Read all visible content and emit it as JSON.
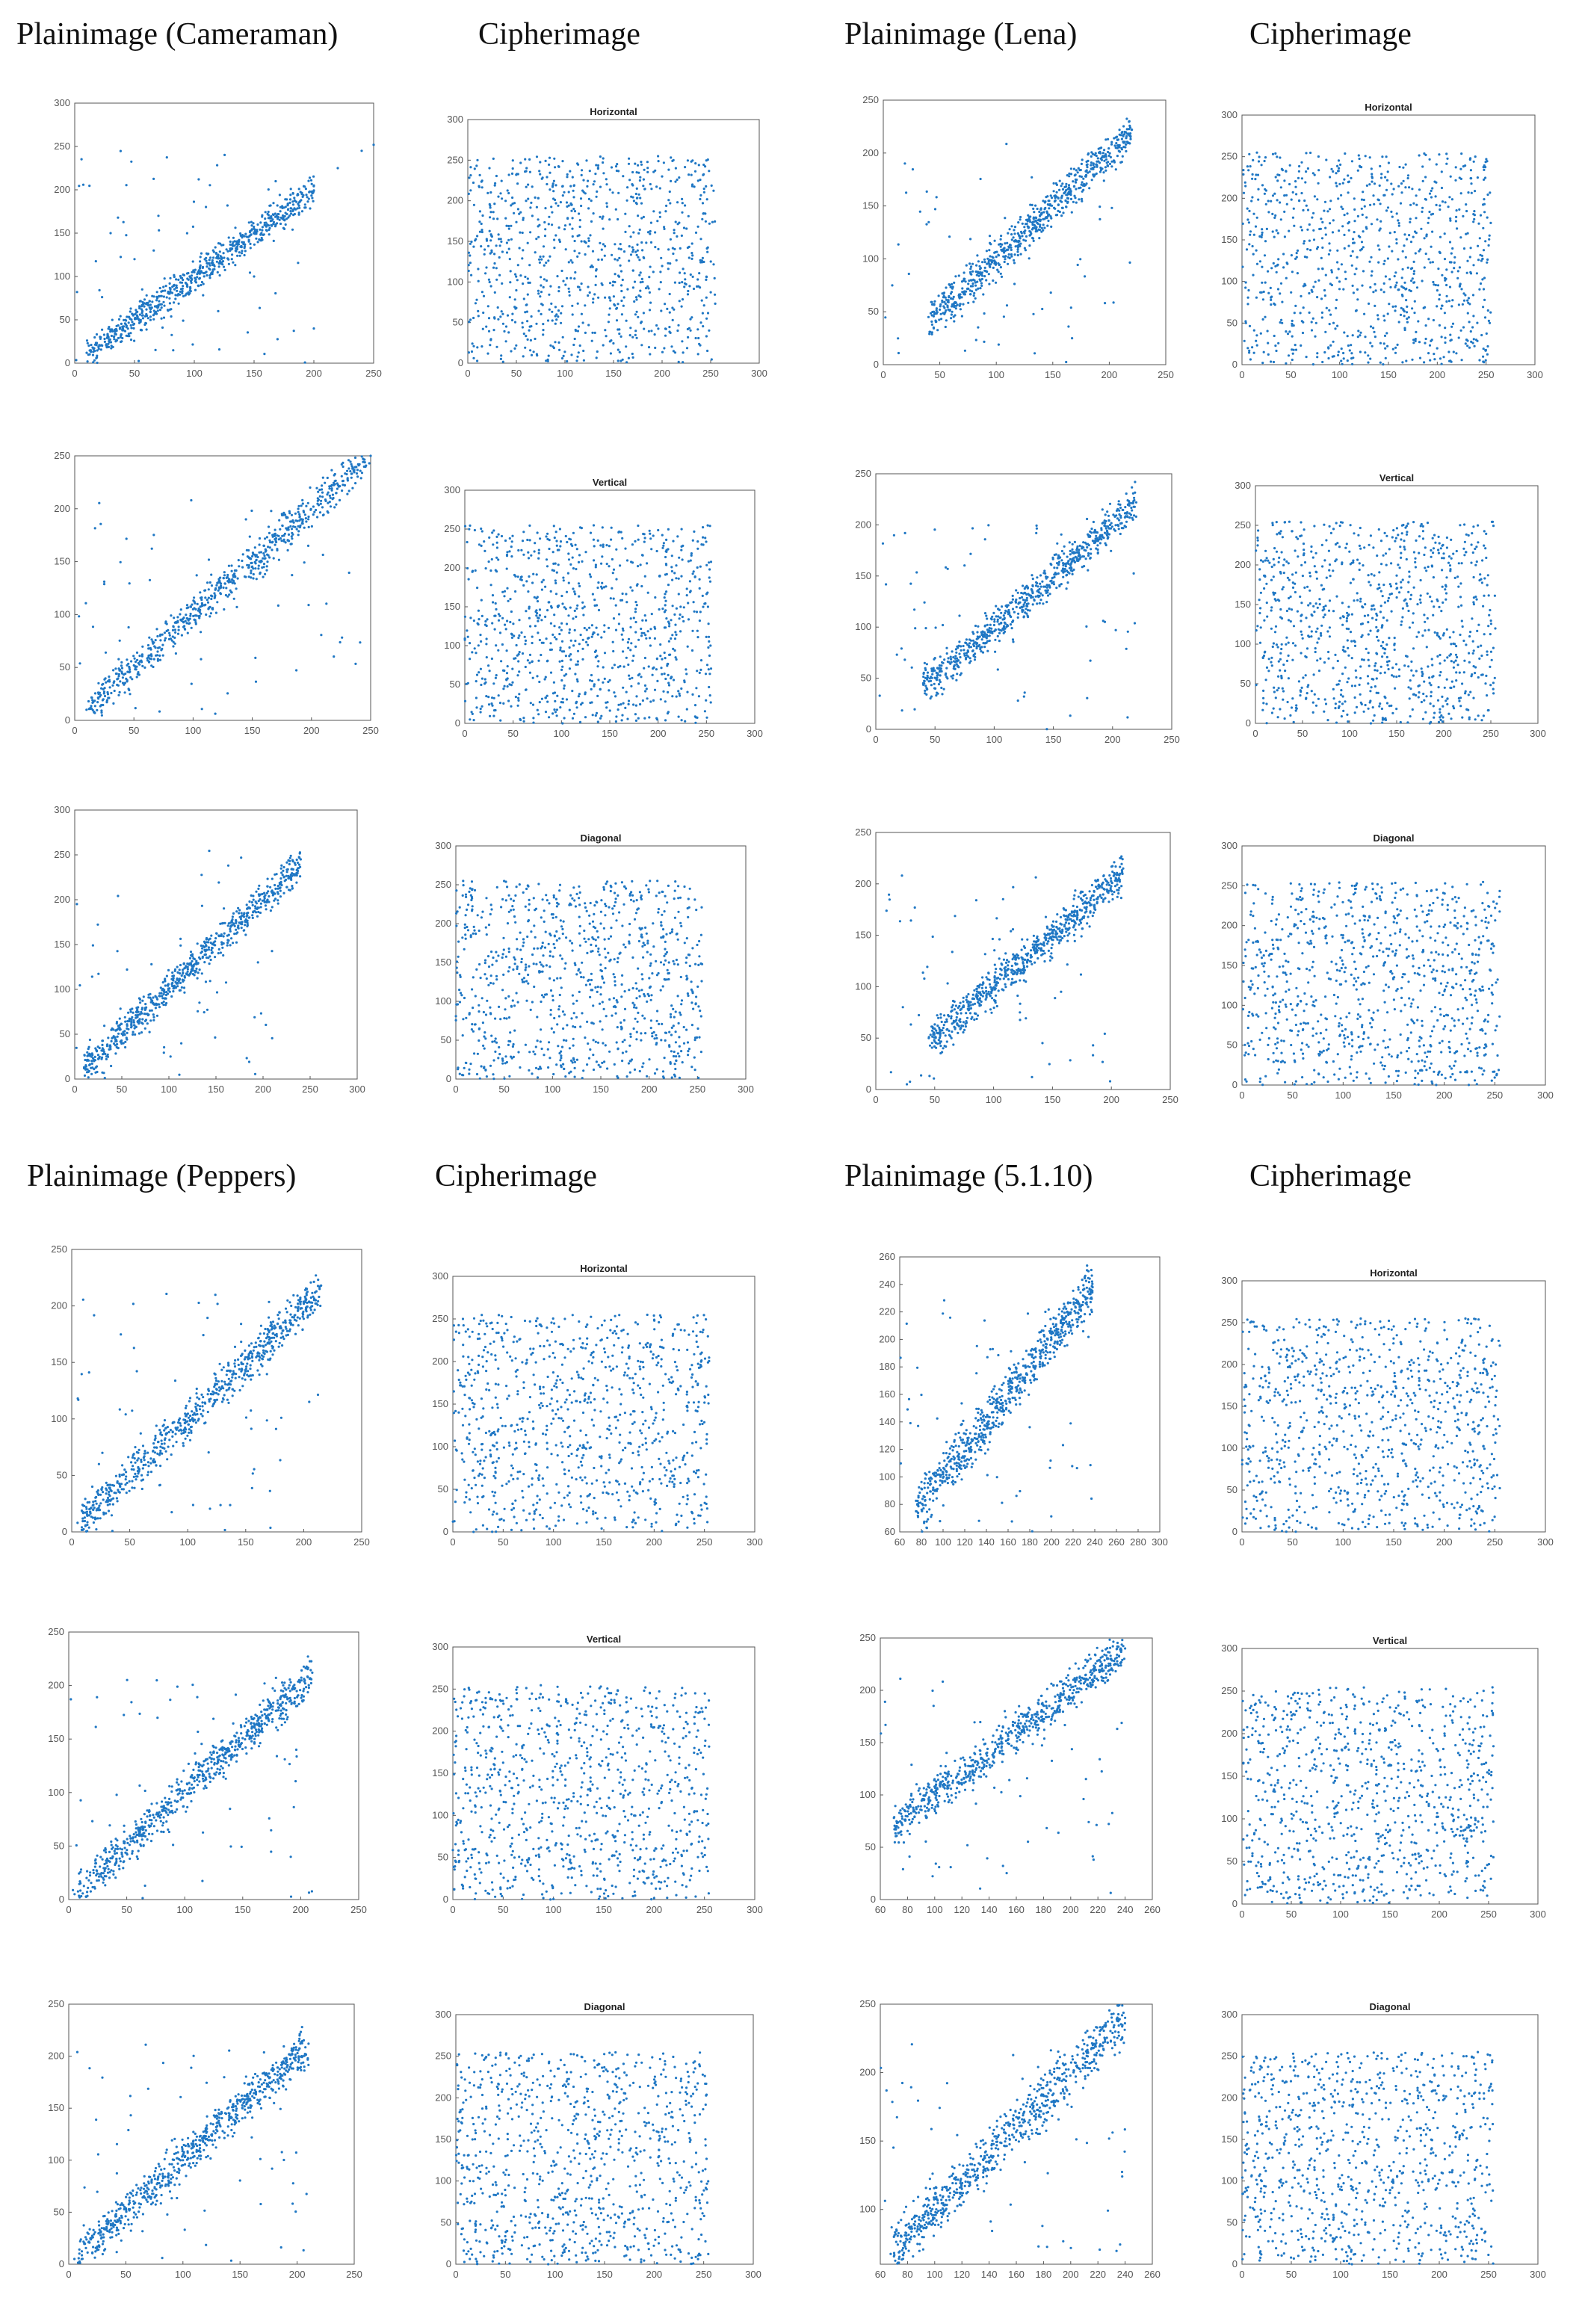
{
  "figure": {
    "headers": {
      "cameraman": "Plainimage (Cameraman)",
      "cipher_a": "Cipherimage",
      "lena": "Plainimage (Lena)",
      "cipher_b": "Cipherimage",
      "peppers": "Plainimage (Peppers)",
      "cipher_c": "Cipherimage",
      "img5110": "Plainimage (5.1.10)",
      "cipher_d": "Cipherimage"
    },
    "point_color": "#1f77c4"
  },
  "chart_data": [
    {
      "id": "cam-h",
      "type": "scatter",
      "pattern": "correlated",
      "title": "",
      "xlim": [
        0,
        250
      ],
      "ylim": [
        0,
        300
      ],
      "xticks": [
        0,
        50,
        100,
        150,
        200,
        250
      ],
      "yticks": [
        0,
        50,
        100,
        150,
        200,
        250,
        300
      ],
      "points": [
        [
          10,
          12
        ],
        [
          15,
          18
        ],
        [
          25,
          28
        ],
        [
          40,
          42
        ],
        [
          60,
          62
        ],
        [
          80,
          85
        ],
        [
          100,
          105
        ],
        [
          110,
          118
        ],
        [
          120,
          125
        ],
        [
          130,
          132
        ],
        [
          140,
          145
        ],
        [
          150,
          155
        ],
        [
          160,
          162
        ],
        [
          170,
          172
        ],
        [
          180,
          185
        ],
        [
          190,
          195
        ],
        [
          200,
          205
        ],
        [
          220,
          225
        ],
        [
          240,
          245
        ],
        [
          250,
          252
        ],
        [
          30,
          150
        ],
        [
          50,
          120
        ],
        [
          70,
          170
        ],
        [
          120,
          60
        ],
        [
          150,
          100
        ],
        [
          200,
          40
        ]
      ]
    },
    {
      "id": "cam-h-c",
      "type": "scatter",
      "pattern": "uniform",
      "title": "Horizontal",
      "xlim": [
        0,
        300
      ],
      "ylim": [
        0,
        300
      ],
      "xticks": [
        0,
        50,
        100,
        150,
        200,
        250,
        300
      ],
      "yticks": [
        0,
        50,
        100,
        150,
        200,
        250,
        300
      ],
      "points": [
        [
          10,
          250
        ],
        [
          60,
          200
        ],
        [
          120,
          150
        ],
        [
          180,
          100
        ],
        [
          240,
          50
        ],
        [
          30,
          20
        ],
        [
          200,
          230
        ]
      ]
    },
    {
      "id": "lena-h",
      "type": "scatter",
      "pattern": "correlated",
      "title": "",
      "xlim": [
        0,
        250
      ],
      "ylim": [
        0,
        250
      ],
      "xticks": [
        0,
        50,
        100,
        150,
        200,
        250
      ],
      "yticks": [
        0,
        50,
        100,
        150,
        200,
        250
      ],
      "points": [
        [
          40,
          45
        ],
        [
          50,
          52
        ],
        [
          70,
          72
        ],
        [
          100,
          102
        ],
        [
          130,
          135
        ],
        [
          160,
          162
        ],
        [
          190,
          195
        ],
        [
          220,
          222
        ]
      ]
    },
    {
      "id": "lena-h-c",
      "type": "scatter",
      "pattern": "uniform",
      "title": "Horizontal",
      "xlim": [
        0,
        300
      ],
      "ylim": [
        0,
        300
      ],
      "xticks": [
        0,
        50,
        100,
        150,
        200,
        250,
        300
      ],
      "yticks": [
        0,
        50,
        100,
        150,
        200,
        250,
        300
      ],
      "points": [
        [
          20,
          240
        ],
        [
          90,
          170
        ],
        [
          160,
          90
        ],
        [
          230,
          30
        ]
      ]
    },
    {
      "id": "cam-v",
      "type": "scatter",
      "pattern": "correlated",
      "title": "",
      "xlim": [
        0,
        250
      ],
      "ylim": [
        0,
        250
      ],
      "xticks": [
        0,
        50,
        100,
        150,
        200,
        250
      ],
      "yticks": [
        0,
        50,
        100,
        150,
        200,
        250
      ],
      "points": [
        [
          10,
          10
        ],
        [
          50,
          52
        ],
        [
          100,
          105
        ],
        [
          130,
          132
        ],
        [
          160,
          165
        ],
        [
          190,
          192
        ],
        [
          250,
          250
        ]
      ]
    },
    {
      "id": "cam-v-c",
      "type": "scatter",
      "pattern": "uniform",
      "title": "Vertical",
      "xlim": [
        0,
        300
      ],
      "ylim": [
        0,
        300
      ],
      "xticks": [
        0,
        50,
        100,
        150,
        200,
        250,
        300
      ],
      "yticks": [
        0,
        50,
        100,
        150,
        200,
        250,
        300
      ],
      "points": [
        [
          15,
          230
        ],
        [
          100,
          120
        ],
        [
          210,
          40
        ]
      ]
    },
    {
      "id": "lena-v",
      "type": "scatter",
      "pattern": "correlated",
      "title": "",
      "xlim": [
        0,
        250
      ],
      "ylim": [
        0,
        250
      ],
      "xticks": [
        0,
        50,
        100,
        150,
        200,
        250
      ],
      "yticks": [
        0,
        50,
        100,
        150,
        200,
        250
      ],
      "points": [
        [
          40,
          45
        ],
        [
          100,
          102
        ],
        [
          160,
          162
        ],
        [
          220,
          222
        ]
      ]
    },
    {
      "id": "lena-v-c",
      "type": "scatter",
      "pattern": "uniform",
      "title": "Vertical",
      "xlim": [
        0,
        300
      ],
      "ylim": [
        0,
        300
      ],
      "xticks": [
        0,
        50,
        100,
        150,
        200,
        250,
        300
      ],
      "yticks": [
        0,
        50,
        100,
        150,
        200,
        250,
        300
      ],
      "points": [
        [
          20,
          200
        ],
        [
          120,
          80
        ],
        [
          230,
          240
        ]
      ]
    },
    {
      "id": "cam-d",
      "type": "scatter",
      "pattern": "correlated",
      "title": "",
      "xlim": [
        0,
        300
      ],
      "ylim": [
        0,
        300
      ],
      "xticks": [
        0,
        50,
        100,
        150,
        200,
        250,
        300
      ],
      "yticks": [
        0,
        50,
        100,
        150,
        200,
        250,
        300
      ],
      "points": [
        [
          10,
          12
        ],
        [
          120,
          125
        ],
        [
          180,
          185
        ],
        [
          240,
          245
        ]
      ]
    },
    {
      "id": "cam-d-c",
      "type": "scatter",
      "pattern": "uniform",
      "title": "Diagonal",
      "xlim": [
        0,
        300
      ],
      "ylim": [
        0,
        300
      ],
      "xticks": [
        0,
        50,
        100,
        150,
        200,
        250,
        300
      ],
      "yticks": [
        0,
        50,
        100,
        150,
        200,
        250,
        300
      ],
      "points": [
        [
          30,
          60
        ],
        [
          150,
          200
        ],
        [
          240,
          110
        ]
      ]
    },
    {
      "id": "lena-d",
      "type": "scatter",
      "pattern": "correlated",
      "title": "",
      "xlim": [
        0,
        250
      ],
      "ylim": [
        0,
        250
      ],
      "xticks": [
        0,
        50,
        100,
        150,
        200,
        250
      ],
      "yticks": [
        0,
        50,
        100,
        150,
        200,
        250
      ],
      "points": [
        [
          45,
          50
        ],
        [
          120,
          122
        ],
        [
          210,
          215
        ]
      ]
    },
    {
      "id": "lena-d-c",
      "type": "scatter",
      "pattern": "uniform",
      "title": "Diagonal",
      "xlim": [
        0,
        300
      ],
      "ylim": [
        0,
        300
      ],
      "xticks": [
        0,
        50,
        100,
        150,
        200,
        250,
        300
      ],
      "yticks": [
        0,
        50,
        100,
        150,
        200,
        250,
        300
      ],
      "points": [
        [
          40,
          30
        ],
        [
          140,
          150
        ],
        [
          240,
          220
        ]
      ]
    },
    {
      "id": "pep-h",
      "type": "scatter",
      "pattern": "correlated",
      "title": "",
      "xlim": [
        0,
        250
      ],
      "ylim": [
        0,
        250
      ],
      "xticks": [
        0,
        50,
        100,
        150,
        200,
        250
      ],
      "yticks": [
        0,
        50,
        100,
        150,
        200,
        250
      ],
      "points": [
        [
          5,
          8
        ],
        [
          60,
          62
        ],
        [
          120,
          122
        ],
        [
          180,
          182
        ],
        [
          215,
          218
        ]
      ]
    },
    {
      "id": "pep-h-c",
      "type": "scatter",
      "pattern": "uniform",
      "title": "Horizontal",
      "xlim": [
        0,
        300
      ],
      "ylim": [
        0,
        300
      ],
      "xticks": [
        0,
        50,
        100,
        150,
        200,
        250,
        300
      ],
      "yticks": [
        0,
        50,
        100,
        150,
        200,
        250,
        300
      ],
      "points": [
        [
          10,
          250
        ],
        [
          130,
          100
        ],
        [
          240,
          10
        ]
      ]
    },
    {
      "id": "510-h",
      "type": "scatter",
      "pattern": "correlated",
      "title": "",
      "xlim": [
        60,
        300
      ],
      "ylim": [
        60,
        260
      ],
      "xticks": [
        60,
        80,
        100,
        120,
        140,
        160,
        180,
        200,
        220,
        240,
        260,
        280,
        300
      ],
      "yticks": [
        60,
        80,
        100,
        120,
        140,
        160,
        180,
        200,
        220,
        240,
        260
      ],
      "points": [
        [
          75,
          75
        ],
        [
          100,
          102
        ],
        [
          150,
          150
        ],
        [
          200,
          200
        ],
        [
          238,
          238
        ]
      ]
    },
    {
      "id": "510-h-c",
      "type": "scatter",
      "pattern": "uniform",
      "title": "Horizontal",
      "xlim": [
        0,
        300
      ],
      "ylim": [
        0,
        300
      ],
      "xticks": [
        0,
        50,
        100,
        150,
        200,
        250,
        300
      ],
      "yticks": [
        0,
        50,
        100,
        150,
        200,
        250,
        300
      ],
      "points": [
        [
          20,
          60
        ],
        [
          120,
          190
        ],
        [
          230,
          120
        ]
      ]
    },
    {
      "id": "pep-v",
      "type": "scatter",
      "pattern": "correlated",
      "title": "",
      "xlim": [
        0,
        250
      ],
      "ylim": [
        0,
        250
      ],
      "xticks": [
        0,
        50,
        100,
        150,
        200,
        250
      ],
      "yticks": [
        0,
        50,
        100,
        150,
        200,
        250
      ],
      "points": [
        [
          5,
          5
        ],
        [
          100,
          102
        ],
        [
          210,
          212
        ]
      ]
    },
    {
      "id": "pep-v-c",
      "type": "scatter",
      "pattern": "uniform",
      "title": "Vertical",
      "xlim": [
        0,
        300
      ],
      "ylim": [
        0,
        300
      ],
      "xticks": [
        0,
        50,
        100,
        150,
        200,
        250,
        300
      ],
      "yticks": [
        0,
        50,
        100,
        150,
        200,
        250,
        300
      ],
      "points": [
        [
          30,
          220
        ],
        [
          140,
          60
        ],
        [
          240,
          180
        ]
      ]
    },
    {
      "id": "510-v",
      "type": "scatter",
      "pattern": "correlated",
      "title": "",
      "xlim": [
        60,
        260
      ],
      "ylim": [
        0,
        250
      ],
      "xticks": [
        60,
        80,
        100,
        120,
        140,
        160,
        180,
        200,
        220,
        240,
        260
      ],
      "yticks": [
        0,
        50,
        100,
        150,
        200,
        250
      ],
      "points": [
        [
          70,
          78
        ],
        [
          120,
          110
        ],
        [
          180,
          170
        ],
        [
          240,
          240
        ]
      ]
    },
    {
      "id": "510-v-c",
      "type": "scatter",
      "pattern": "uniform",
      "title": "Vertical",
      "xlim": [
        0,
        300
      ],
      "ylim": [
        0,
        300
      ],
      "xticks": [
        0,
        50,
        100,
        150,
        200,
        250,
        300
      ],
      "yticks": [
        0,
        50,
        100,
        150,
        200,
        250,
        300
      ],
      "points": [
        [
          20,
          20
        ],
        [
          130,
          200
        ],
        [
          230,
          90
        ]
      ]
    },
    {
      "id": "pep-d",
      "type": "scatter",
      "pattern": "correlated",
      "title": "",
      "xlim": [
        0,
        250
      ],
      "ylim": [
        0,
        250
      ],
      "xticks": [
        0,
        50,
        100,
        150,
        200,
        250
      ],
      "yticks": [
        0,
        50,
        100,
        150,
        200,
        250
      ],
      "points": [
        [
          5,
          5
        ],
        [
          100,
          100
        ],
        [
          210,
          212
        ]
      ]
    },
    {
      "id": "pep-d-c",
      "type": "scatter",
      "pattern": "uniform",
      "title": "Diagonal",
      "xlim": [
        0,
        300
      ],
      "ylim": [
        0,
        300
      ],
      "xticks": [
        0,
        50,
        100,
        150,
        200,
        250,
        300
      ],
      "yticks": [
        0,
        50,
        100,
        150,
        200,
        250,
        300
      ],
      "points": [
        [
          40,
          240
        ],
        [
          150,
          120
        ],
        [
          245,
          30
        ]
      ]
    },
    {
      "id": "510-d",
      "type": "scatter",
      "pattern": "correlated",
      "title": "",
      "xlim": [
        60,
        260
      ],
      "ylim": [
        60,
        250
      ],
      "xticks": [
        60,
        80,
        100,
        120,
        140,
        160,
        180,
        200,
        220,
        240,
        260
      ],
      "yticks": [
        100,
        150,
        200,
        250
      ],
      "points": [
        [
          70,
          80
        ],
        [
          120,
          115
        ],
        [
          180,
          170
        ],
        [
          240,
          240
        ]
      ]
    },
    {
      "id": "510-d-c",
      "type": "scatter",
      "pattern": "uniform",
      "title": "Diagonal",
      "xlim": [
        0,
        300
      ],
      "ylim": [
        0,
        300
      ],
      "xticks": [
        0,
        50,
        100,
        150,
        200,
        250,
        300
      ],
      "yticks": [
        0,
        50,
        100,
        150,
        200,
        250,
        300
      ],
      "points": [
        [
          20,
          100
        ],
        [
          140,
          230
        ],
        [
          230,
          50
        ]
      ]
    }
  ]
}
